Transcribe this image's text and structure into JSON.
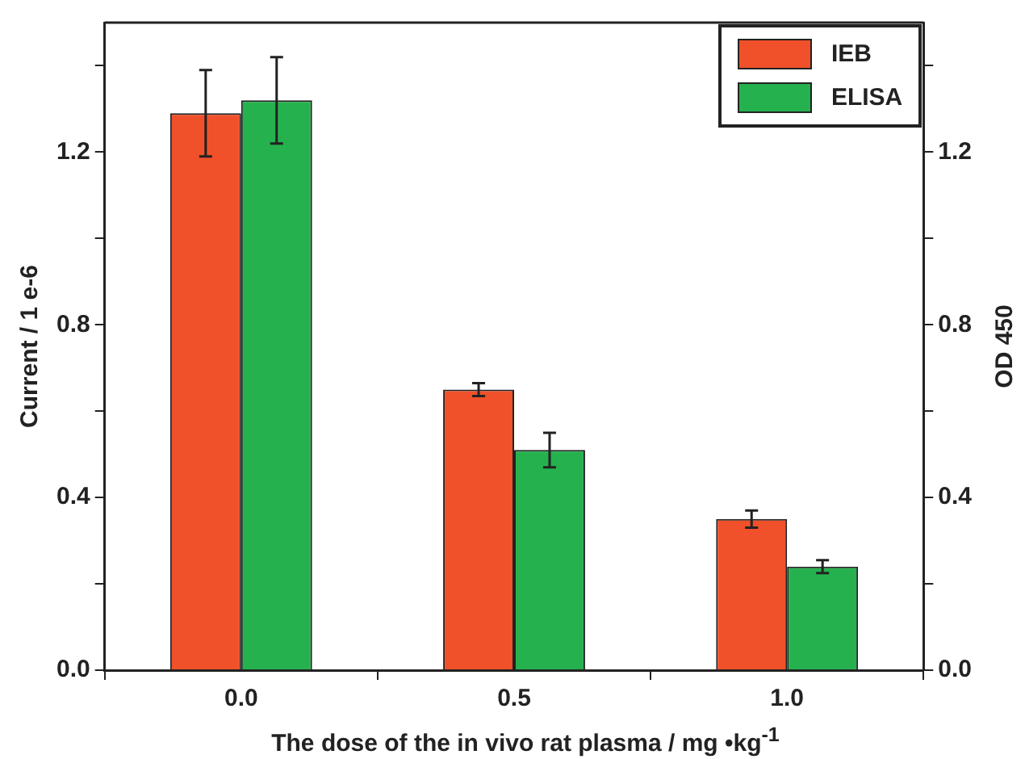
{
  "chart_data": {
    "type": "bar",
    "xlabel": "The dose of the in vivo rat plasma / mg •kg$^{-1}$",
    "ylabel": "Current / 1 e-6",
    "y2label": "OD 450",
    "categories": [
      "0.0",
      "0.5",
      "1.0"
    ],
    "series": [
      {
        "name": "IEB",
        "color": "#f0512a",
        "values": [
          1.29,
          0.65,
          0.35
        ],
        "errors": [
          0.1,
          0.015,
          0.02
        ]
      },
      {
        "name": "ELISA",
        "color": "#25b24e",
        "values": [
          1.32,
          0.51,
          0.24
        ],
        "errors": [
          0.1,
          0.04,
          0.015
        ]
      }
    ],
    "ylim": [
      0,
      1.5
    ],
    "yticks": [
      {
        "value": 0,
        "label": "0.0"
      },
      {
        "value": 0.2,
        "label": null
      },
      {
        "value": 0.4,
        "label": "0.4"
      },
      {
        "value": 0.6,
        "label": null
      },
      {
        "value": 0.8,
        "label": "0.8"
      },
      {
        "value": 1.0,
        "label": null
      },
      {
        "value": 1.2,
        "label": "1.2"
      },
      {
        "value": 1.4,
        "label": null
      }
    ],
    "y2lim": [
      0,
      1.5
    ],
    "y2ticks": [
      {
        "value": 0,
        "label": "0.0"
      },
      {
        "value": 0.2,
        "label": null
      },
      {
        "value": 0.4,
        "label": "0.4"
      },
      {
        "value": 0.6,
        "label": null
      },
      {
        "value": 0.8,
        "label": "0.8"
      },
      {
        "value": 1.0,
        "label": null
      },
      {
        "value": 1.2,
        "label": "1.2"
      },
      {
        "value": 1.4,
        "label": null
      }
    ],
    "grid": false,
    "legend": "top right"
  }
}
